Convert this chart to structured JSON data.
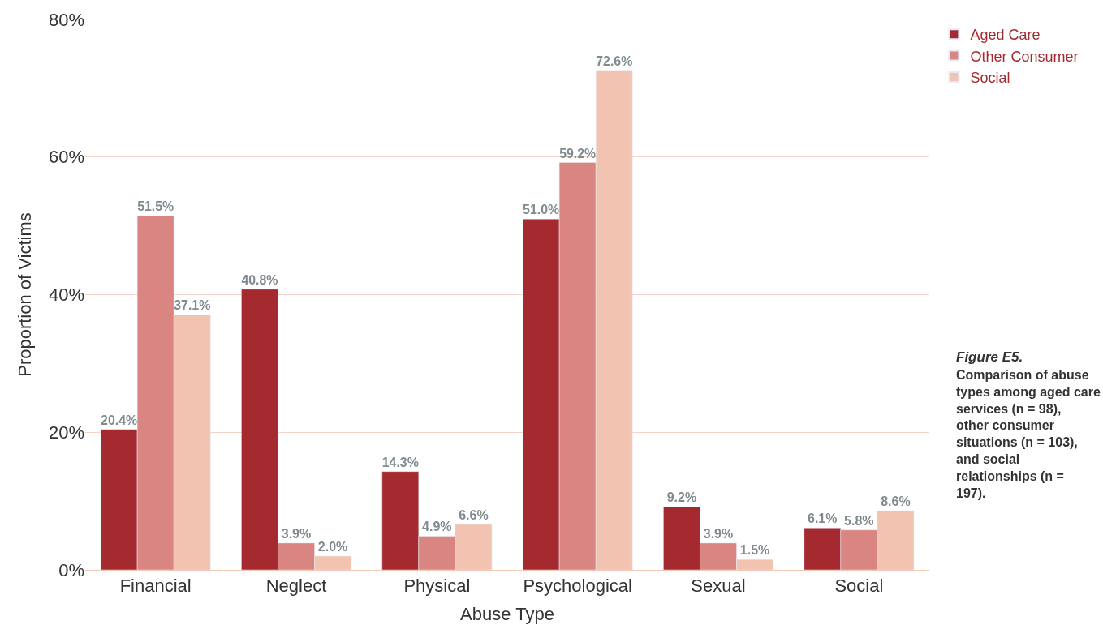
{
  "chart_data": {
    "type": "bar",
    "xlabel": "Abuse Type",
    "ylabel": "Proportion of Victims",
    "categories": [
      "Financial",
      "Neglect",
      "Physical",
      "Psychological",
      "Sexual",
      "Social"
    ],
    "series": [
      {
        "name": "Aged Care",
        "color": "#a52a30",
        "values": [
          20.4,
          40.8,
          14.3,
          51.0,
          9.2,
          6.1
        ],
        "value_labels": [
          "20.4%",
          "40.8%",
          "14.3%",
          "51.0%",
          "9.2%",
          "6.1%"
        ]
      },
      {
        "name": "Other Consumer",
        "color": "#d98581",
        "values": [
          51.5,
          3.9,
          4.9,
          59.2,
          3.9,
          5.8
        ],
        "value_labels": [
          "51.5%",
          "3.9%",
          "4.9%",
          "59.2%",
          "3.9%",
          "5.8%"
        ]
      },
      {
        "name": "Social",
        "color": "#f2c3b1",
        "values": [
          37.1,
          2.0,
          6.6,
          72.6,
          1.5,
          8.6
        ],
        "value_labels": [
          "37.1%",
          "2.0%",
          "6.6%",
          "72.6%",
          "1.5%",
          "8.6%"
        ]
      }
    ],
    "ylim": [
      0,
      80
    ],
    "yticks": [
      {
        "value": 0,
        "label": "0%"
      },
      {
        "value": 20,
        "label": "20%"
      },
      {
        "value": 40,
        "label": "40%"
      },
      {
        "value": 60,
        "label": "60%"
      },
      {
        "value": 80,
        "label": "80%"
      }
    ],
    "grid": "y",
    "legend": "top right",
    "annotations": [
      "Figure E5.",
      "Comparison of abuse types among aged care services (n = 98), other consumer situations (n = 103), and social relationships (n = 197)."
    ]
  }
}
